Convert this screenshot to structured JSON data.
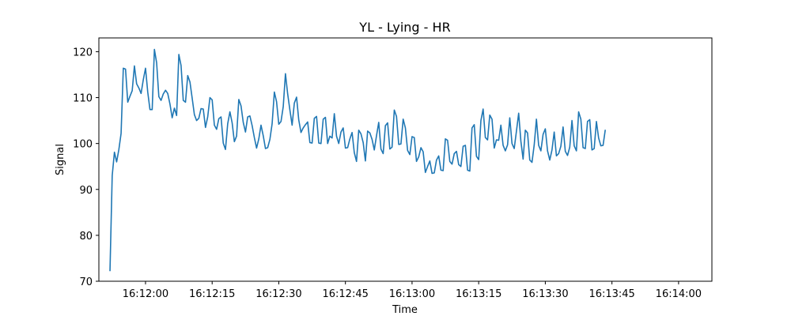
{
  "chart_data": {
    "type": "line",
    "title": "YL - Lying - HR",
    "xlabel": "Time",
    "ylabel": "Signal",
    "xlim": [
      "16:11:49.5",
      "16:14:07.5"
    ],
    "ylim": [
      70,
      123
    ],
    "grid": false,
    "x_ticks": [
      "16:12:00",
      "16:12:15",
      "16:12:30",
      "16:12:45",
      "16:13:00",
      "16:13:15",
      "16:13:30",
      "16:13:45",
      "16:14:00"
    ],
    "y_ticks": [
      70,
      80,
      90,
      100,
      110,
      120
    ],
    "series": [
      {
        "color": "#1f77b4",
        "x_start": "16:11:52",
        "x_step_seconds": 0.5,
        "values": [
          72.2,
          93.0,
          98.1,
          96.0,
          98.7,
          102.2,
          116.4,
          116.2,
          109.0,
          110.3,
          111.5,
          116.9,
          113.0,
          112.1,
          110.9,
          113.9,
          116.4,
          111.2,
          107.4,
          107.4,
          120.5,
          117.6,
          110.2,
          109.4,
          110.8,
          111.6,
          110.9,
          108.6,
          105.6,
          107.7,
          106.1,
          119.4,
          117.0,
          109.4,
          109.0,
          114.8,
          113.4,
          109.9,
          106.3,
          105.0,
          105.5,
          107.6,
          107.5,
          103.5,
          105.8,
          110.0,
          109.5,
          104.0,
          103.1,
          105.4,
          105.8,
          100.1,
          98.7,
          104.3,
          106.9,
          104.5,
          100.4,
          101.6,
          109.6,
          108.2,
          104.6,
          102.5,
          105.8,
          106.0,
          103.9,
          101.3,
          99.0,
          101.0,
          104.0,
          101.7,
          98.9,
          99.1,
          100.9,
          104.3,
          111.2,
          109.1,
          104.2,
          104.8,
          108.0,
          115.2,
          110.8,
          107.3,
          104.0,
          108.8,
          110.1,
          105.1,
          102.4,
          103.4,
          104.1,
          104.7,
          100.2,
          100.1,
          105.5,
          105.9,
          100.1,
          100.0,
          105.3,
          105.7,
          100.0,
          101.6,
          101.2,
          106.5,
          101.6,
          100.0,
          102.5,
          103.4,
          99.0,
          99.1,
          101.0,
          102.4,
          98.0,
          96.1,
          102.9,
          102.1,
          100.2,
          96.2,
          102.7,
          102.3,
          100.9,
          98.6,
          101.7,
          104.6,
          98.8,
          97.8,
          103.9,
          104.5,
          98.8,
          99.2,
          107.3,
          105.9,
          99.8,
          99.9,
          105.3,
          103.4,
          98.5,
          97.6,
          101.5,
          101.3,
          96.1,
          97.1,
          99.1,
          98.2,
          93.7,
          95.0,
          96.2,
          93.5,
          93.6,
          96.4,
          97.3,
          94.2,
          94.1,
          101.0,
          100.7,
          96.1,
          95.5,
          97.8,
          98.3,
          95.4,
          95.0,
          99.4,
          99.6,
          94.2,
          94.0,
          103.4,
          104.1,
          97.2,
          96.5,
          105.0,
          107.5,
          101.3,
          100.8,
          106.2,
          105.3,
          99.0,
          100.8,
          100.7,
          104.0,
          99.6,
          98.4,
          99.7,
          105.6,
          100.0,
          98.9,
          102.7,
          106.6,
          100.5,
          96.6,
          102.9,
          102.3,
          96.4,
          95.9,
          99.7,
          105.3,
          99.6,
          98.4,
          102.0,
          103.2,
          98.4,
          96.4,
          98.6,
          102.5,
          97.3,
          97.8,
          99.4,
          103.6,
          98.3,
          97.4,
          99.2,
          105.0,
          99.5,
          98.4,
          106.9,
          105.3,
          99.1,
          98.9,
          104.8,
          105.2,
          98.6,
          98.9,
          104.8,
          101.2,
          99.5,
          99.6,
          103.0
        ]
      }
    ]
  }
}
